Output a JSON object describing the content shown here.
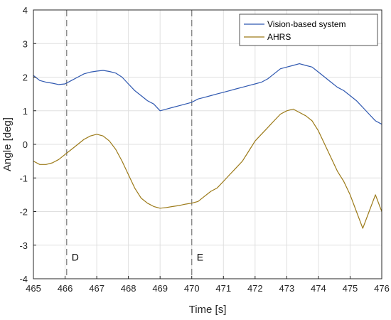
{
  "chart_data": {
    "type": "line",
    "xlabel": "Time [s]",
    "ylabel": "Angle [deg]",
    "xlim": [
      465,
      476
    ],
    "ylim": [
      -4,
      4
    ],
    "x_ticks": [
      465,
      466,
      467,
      468,
      469,
      470,
      471,
      472,
      473,
      474,
      475,
      476
    ],
    "y_ticks": [
      -4,
      -3,
      -2,
      -1,
      0,
      1,
      2,
      3,
      4
    ],
    "grid": true,
    "legend_position": "top-right",
    "colors": {
      "vision": "#2f58b0",
      "ahrs": "#9c7a18",
      "vline": "#808080",
      "grid": "#e0e0e0"
    },
    "series": [
      {
        "name": "Vision-based system",
        "x": [
          465.0,
          465.2,
          465.4,
          465.6,
          465.8,
          466.0,
          466.2,
          466.4,
          466.6,
          466.8,
          467.0,
          467.2,
          467.4,
          467.6,
          467.8,
          468.0,
          468.2,
          468.4,
          468.6,
          468.8,
          469.0,
          469.2,
          469.4,
          469.6,
          469.8,
          470.0,
          470.2,
          470.4,
          470.6,
          470.8,
          471.0,
          471.2,
          471.4,
          471.6,
          471.8,
          472.0,
          472.2,
          472.4,
          472.6,
          472.8,
          473.0,
          473.2,
          473.4,
          473.6,
          473.8,
          474.0,
          474.2,
          474.4,
          474.6,
          474.8,
          475.0,
          475.2,
          475.4,
          475.6,
          475.8,
          476.0
        ],
        "values": [
          2.05,
          1.9,
          1.85,
          1.82,
          1.78,
          1.8,
          1.9,
          2.0,
          2.1,
          2.15,
          2.18,
          2.2,
          2.17,
          2.12,
          2.0,
          1.8,
          1.6,
          1.45,
          1.3,
          1.2,
          1.0,
          1.05,
          1.1,
          1.15,
          1.2,
          1.25,
          1.35,
          1.4,
          1.45,
          1.5,
          1.55,
          1.6,
          1.65,
          1.7,
          1.75,
          1.8,
          1.85,
          1.95,
          2.1,
          2.25,
          2.3,
          2.35,
          2.4,
          2.35,
          2.3,
          2.15,
          2.0,
          1.85,
          1.7,
          1.6,
          1.45,
          1.3,
          1.1,
          0.9,
          0.7,
          0.6
        ]
      },
      {
        "name": "AHRS",
        "x": [
          465.0,
          465.2,
          465.4,
          465.6,
          465.8,
          466.0,
          466.2,
          466.4,
          466.6,
          466.8,
          467.0,
          467.2,
          467.4,
          467.6,
          467.8,
          468.0,
          468.2,
          468.4,
          468.6,
          468.8,
          469.0,
          469.2,
          469.4,
          469.6,
          469.8,
          470.0,
          470.2,
          470.4,
          470.6,
          470.8,
          471.0,
          471.2,
          471.4,
          471.6,
          471.8,
          472.0,
          472.2,
          472.4,
          472.6,
          472.8,
          473.0,
          473.2,
          473.4,
          473.6,
          473.8,
          474.0,
          474.2,
          474.4,
          474.6,
          474.8,
          475.0,
          475.2,
          475.4,
          475.6,
          475.8,
          476.0
        ],
        "values": [
          -0.5,
          -0.6,
          -0.6,
          -0.55,
          -0.45,
          -0.3,
          -0.15,
          0.0,
          0.15,
          0.25,
          0.3,
          0.25,
          0.1,
          -0.15,
          -0.5,
          -0.9,
          -1.3,
          -1.6,
          -1.75,
          -1.85,
          -1.9,
          -1.88,
          -1.85,
          -1.82,
          -1.78,
          -1.75,
          -1.7,
          -1.55,
          -1.4,
          -1.3,
          -1.1,
          -0.9,
          -0.7,
          -0.5,
          -0.2,
          0.1,
          0.3,
          0.5,
          0.7,
          0.9,
          1.0,
          1.05,
          0.95,
          0.85,
          0.7,
          0.4,
          0.0,
          -0.4,
          -0.8,
          -1.1,
          -1.5,
          -2.0,
          -2.5,
          -2.0,
          -1.5,
          -2.0
        ]
      }
    ],
    "annotations": [
      {
        "x": 466.05,
        "label": "D",
        "label_y": -3.35
      },
      {
        "x": 470.0,
        "label": "E",
        "label_y": -3.35
      }
    ]
  }
}
